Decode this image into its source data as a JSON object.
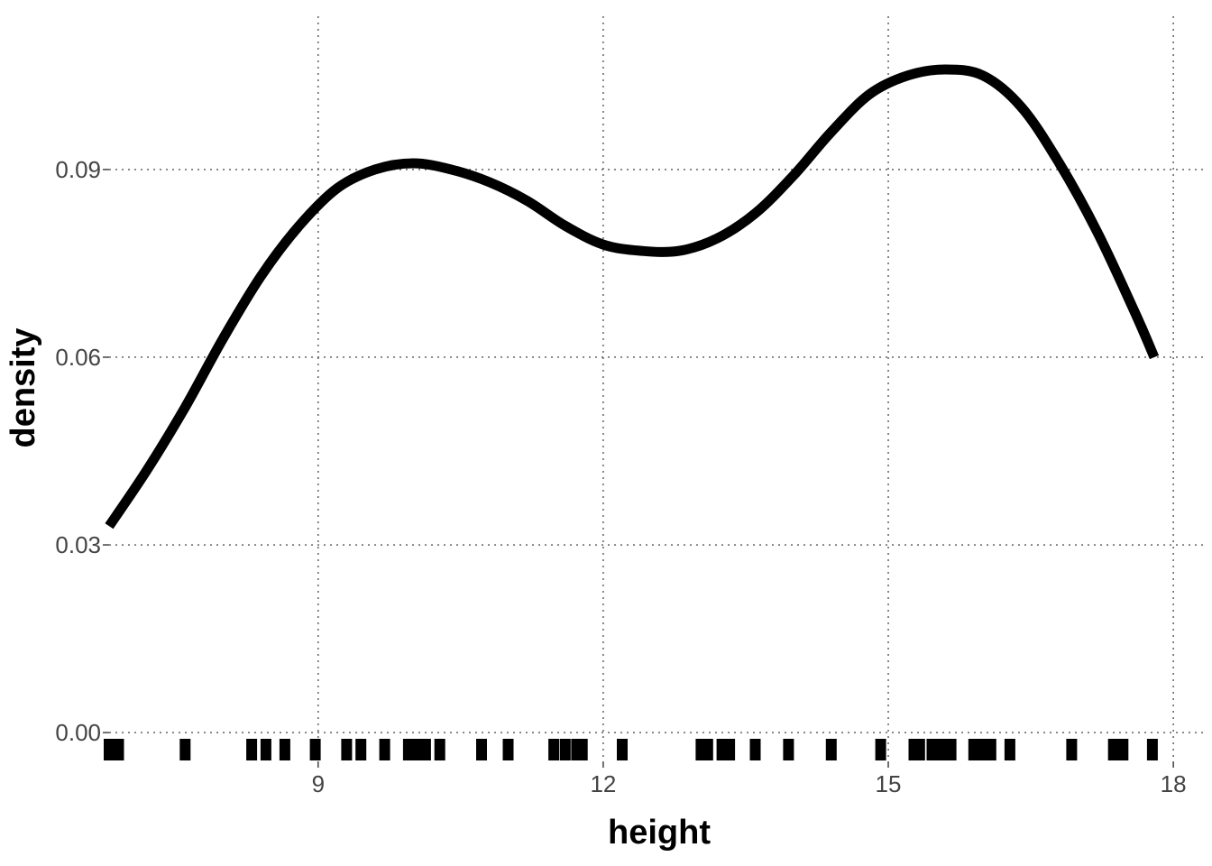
{
  "chart_data": {
    "type": "line",
    "title": "",
    "xlabel": "height",
    "ylabel": "density",
    "xlim": [
      6.8,
      18.35
    ],
    "ylim": [
      -0.0046,
      0.1145
    ],
    "grid": true,
    "legend": "none",
    "x_ticks": [
      9,
      12,
      15,
      18
    ],
    "x_tick_labels": [
      "9",
      "12",
      "15",
      "18"
    ],
    "y_ticks": [
      0.0,
      0.03,
      0.06,
      0.09
    ],
    "y_tick_labels": [
      "0.00",
      "0.03",
      "0.06",
      "0.09"
    ],
    "series": [
      {
        "x": [
          6.8,
          7.2,
          7.6,
          8.0,
          8.4,
          8.8,
          9.2,
          9.6,
          10.0,
          10.4,
          10.8,
          11.2,
          11.6,
          12.0,
          12.4,
          12.8,
          13.2,
          13.6,
          14.0,
          14.4,
          14.8,
          15.2,
          15.6,
          16.0,
          16.4,
          16.8,
          17.2,
          17.6,
          17.8
        ],
        "values": [
          0.033,
          0.042,
          0.052,
          0.063,
          0.073,
          0.081,
          0.087,
          0.09,
          0.091,
          0.09,
          0.088,
          0.085,
          0.081,
          0.078,
          0.077,
          0.077,
          0.079,
          0.083,
          0.089,
          0.096,
          0.102,
          0.105,
          0.106,
          0.105,
          0.1,
          0.091,
          0.08,
          0.067,
          0.06
        ]
      }
    ],
    "rug": [
      6.8,
      6.85,
      6.9,
      7.6,
      8.3,
      8.45,
      8.65,
      8.97,
      9.3,
      9.45,
      9.7,
      9.95,
      10.02,
      10.08,
      10.13,
      10.28,
      10.72,
      11.0,
      11.48,
      11.6,
      11.72,
      11.78,
      12.2,
      13.03,
      13.1,
      13.25,
      13.33,
      13.6,
      13.95,
      14.4,
      14.92,
      15.27,
      15.33,
      15.46,
      15.53,
      15.58,
      15.66,
      15.9,
      15.96,
      16.02,
      16.08,
      16.28,
      16.93,
      17.37,
      17.42,
      17.47,
      17.78
    ]
  }
}
